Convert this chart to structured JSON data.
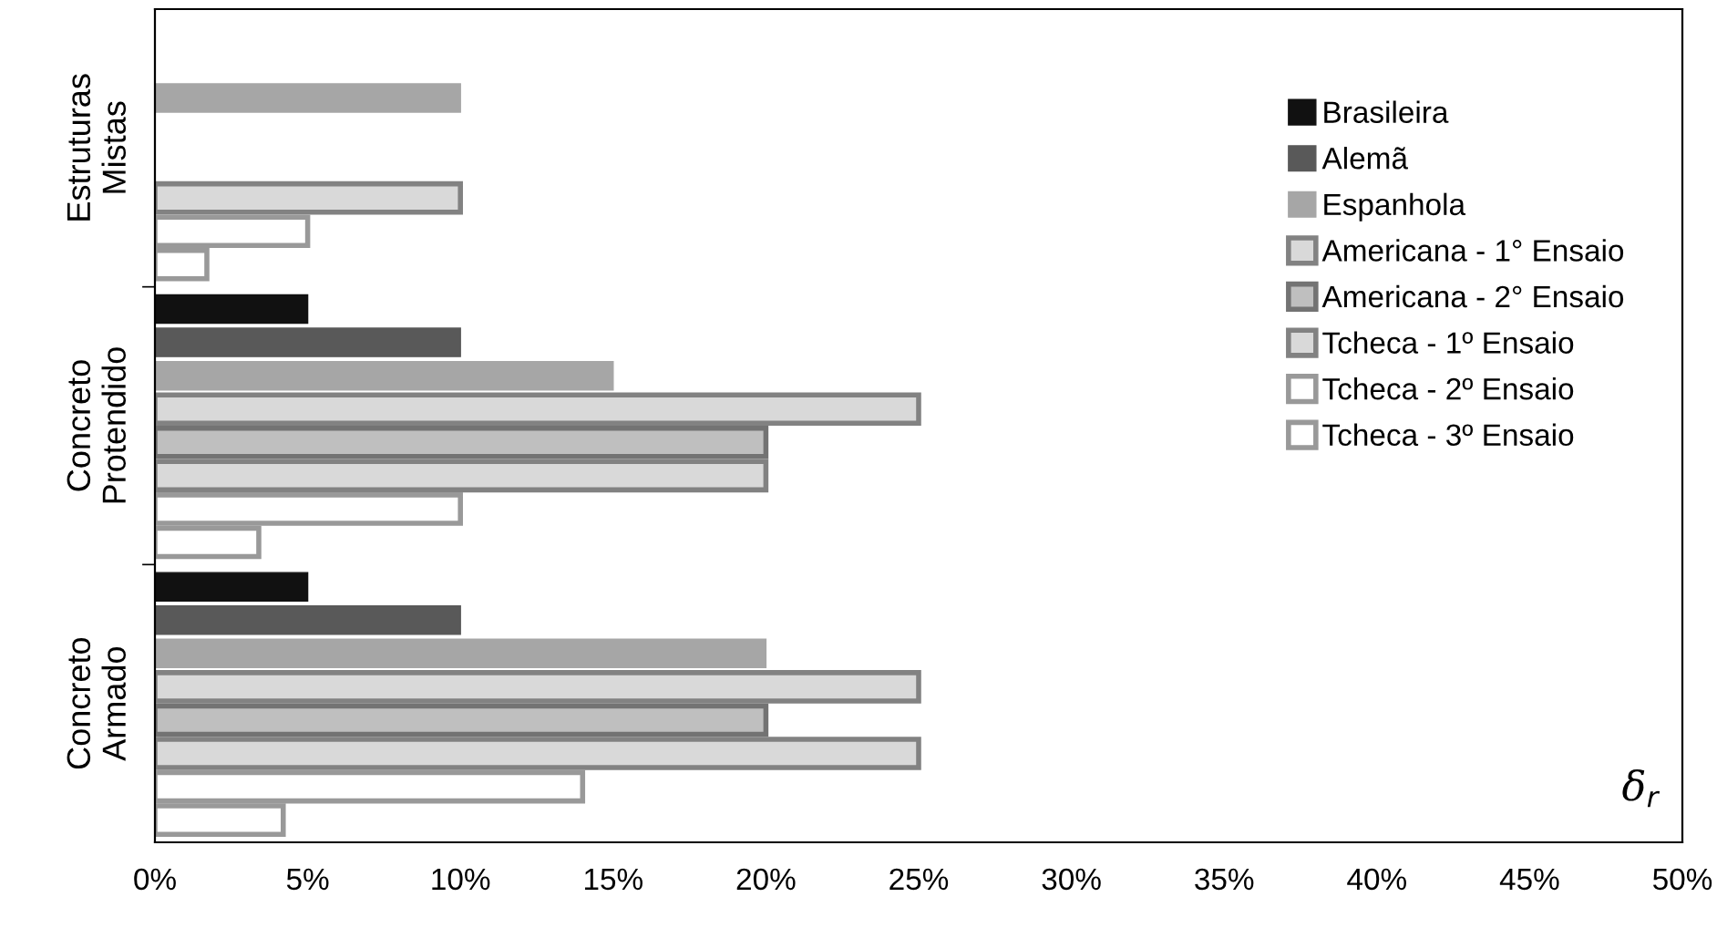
{
  "chart_data": {
    "type": "bar",
    "orientation": "horizontal",
    "xlabel": "δ$_{r}$",
    "categories": [
      "Estruturas\nMistas",
      "Concreto\nProtendido",
      "Concreto\nArmado"
    ],
    "series": [
      {
        "name": "Brasileira",
        "color": "#111111",
        "values": [
          null,
          5,
          5
        ]
      },
      {
        "name": "Alemã",
        "color": "#595959",
        "values": [
          null,
          10,
          10
        ]
      },
      {
        "name": "Espanhola",
        "color": "#a6a6a6",
        "values": [
          10,
          15,
          20
        ]
      },
      {
        "name": "Americana - 1° Ensaio",
        "color": "#d9d9d9",
        "values": [
          null,
          25,
          25
        ]
      },
      {
        "name": "Americana - 2° Ensaio",
        "color": "#bfbfbf",
        "values": [
          null,
          20,
          20
        ]
      },
      {
        "name": "Tcheca - 1º Ensaio",
        "color": "#d9d9d9",
        "values": [
          10,
          20,
          25
        ]
      },
      {
        "name": "Tcheca - 2º Ensaio",
        "color": "#ffffff",
        "values": [
          5,
          10,
          14
        ]
      },
      {
        "name": "Tcheca - 3º Ensaio",
        "color": "#ffffff",
        "values": [
          1.7,
          3.4,
          4.2
        ]
      }
    ],
    "xlim": [
      0,
      50
    ],
    "xticks": [
      {
        "value": 0,
        "label": "0%"
      },
      {
        "value": 5,
        "label": "5%"
      },
      {
        "value": 10,
        "label": "10%"
      },
      {
        "value": 15,
        "label": "15%"
      },
      {
        "value": 20,
        "label": "20%"
      },
      {
        "value": 25,
        "label": "25%"
      },
      {
        "value": 30,
        "label": "30%"
      },
      {
        "value": 35,
        "label": "35%"
      },
      {
        "value": 40,
        "label": "40%"
      },
      {
        "value": 45,
        "label": "45%"
      },
      {
        "value": 50,
        "label": "50%"
      }
    ],
    "grid": false,
    "legend": "right"
  }
}
